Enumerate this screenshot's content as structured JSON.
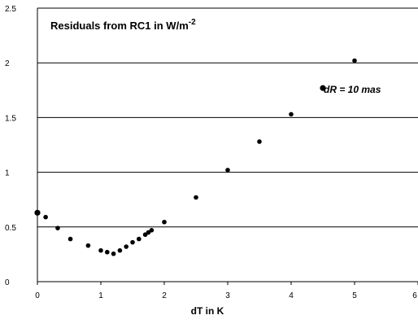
{
  "chart_data": {
    "type": "scatter",
    "title_main": "Residuals from RC1 in W/m",
    "title_sup": "-2",
    "annotation": "dR = 10 mas",
    "xlabel": "dT  in  K",
    "ylabel": "",
    "xlim": [
      0,
      6
    ],
    "ylim": [
      0,
      2.5
    ],
    "grid": "horizontal",
    "x_tick_labels": [
      "0",
      "1",
      "2",
      "3",
      "4",
      "5",
      "6"
    ],
    "y_tick_labels": [
      "0",
      "0.5",
      "1",
      "1.5",
      "2",
      "2.5"
    ],
    "series": [
      {
        "points": [
          [
            0.0,
            0.63
          ],
          [
            0.13,
            0.59
          ],
          [
            0.32,
            0.49
          ],
          [
            0.52,
            0.39
          ],
          [
            0.8,
            0.33
          ],
          [
            1.0,
            0.285
          ],
          [
            1.1,
            0.27
          ],
          [
            1.2,
            0.255
          ],
          [
            1.3,
            0.285
          ],
          [
            1.4,
            0.32
          ],
          [
            1.5,
            0.36
          ],
          [
            1.6,
            0.39
          ],
          [
            1.7,
            0.43
          ],
          [
            1.75,
            0.45
          ],
          [
            1.8,
            0.47
          ],
          [
            2.0,
            0.545
          ],
          [
            2.5,
            0.77
          ],
          [
            3.0,
            1.02
          ],
          [
            3.5,
            1.28
          ],
          [
            4.0,
            1.53
          ],
          [
            4.5,
            1.77
          ],
          [
            5.0,
            2.02
          ]
        ]
      }
    ]
  }
}
